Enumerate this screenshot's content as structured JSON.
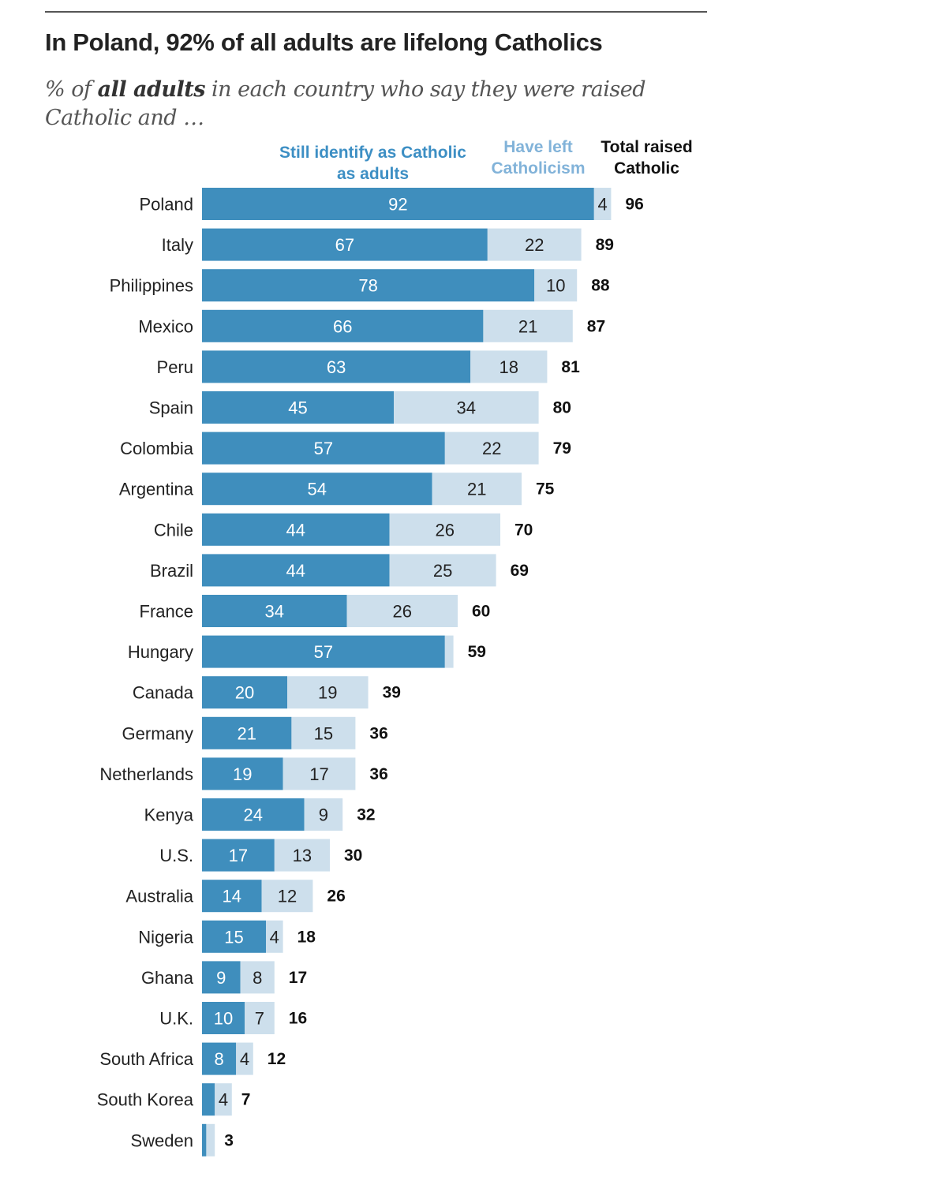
{
  "title": "In Poland, 92% of all adults are lifelong Catholics",
  "subtitle_prefix": "% of ",
  "subtitle_bold": "all adults",
  "subtitle_suffix": " in each country who say they were raised Catholic and …",
  "chart_data": {
    "type": "bar",
    "orientation": "horizontal",
    "stacked": true,
    "categories": [
      "Poland",
      "Italy",
      "Philippines",
      "Mexico",
      "Peru",
      "Spain",
      "Colombia",
      "Argentina",
      "Chile",
      "Brazil",
      "France",
      "Hungary",
      "Canada",
      "Germany",
      "Netherlands",
      "Kenya",
      "U.S.",
      "Australia",
      "Nigeria",
      "Ghana",
      "U.K.",
      "South Africa",
      "South Korea",
      "Sweden"
    ],
    "series": [
      {
        "name": "Still identify as Catholic as adults",
        "color": "#3f8ebd",
        "values": [
          92,
          67,
          78,
          66,
          63,
          45,
          57,
          54,
          44,
          44,
          34,
          57,
          20,
          21,
          19,
          24,
          17,
          14,
          15,
          9,
          10,
          8,
          3,
          1
        ]
      },
      {
        "name": "Have left Catholicism",
        "color": "#cddfec",
        "values": [
          4,
          22,
          10,
          21,
          18,
          34,
          22,
          21,
          26,
          25,
          26,
          2,
          19,
          15,
          17,
          9,
          13,
          12,
          4,
          8,
          7,
          4,
          4,
          2
        ]
      }
    ],
    "totals_label": "Total raised Catholic",
    "totals": [
      96,
      89,
      88,
      87,
      81,
      80,
      79,
      75,
      70,
      69,
      60,
      59,
      39,
      36,
      36,
      32,
      30,
      26,
      18,
      17,
      16,
      12,
      7,
      3
    ],
    "legend_colors": {
      "still": "#3d8fc4",
      "left": "#82b3d9",
      "total": "#111111"
    },
    "grid": false
  }
}
